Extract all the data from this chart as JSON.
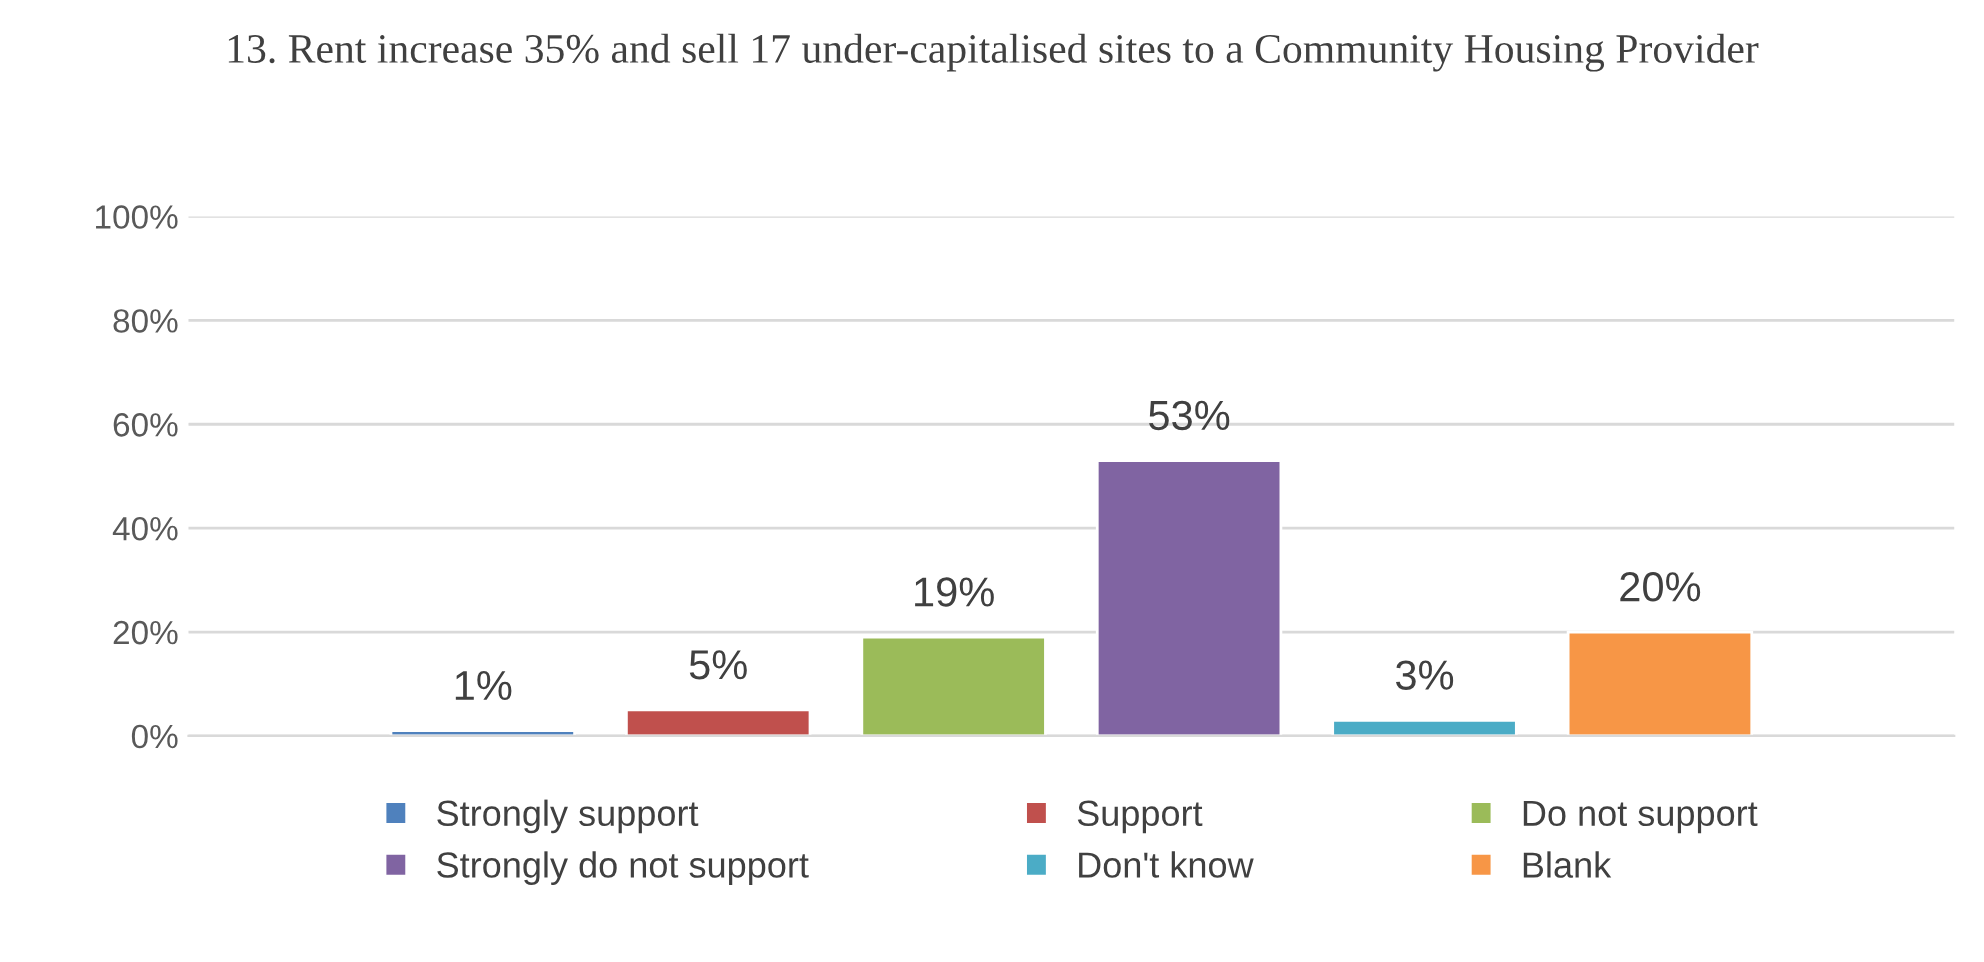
{
  "chart_data": {
    "type": "bar",
    "title": "13. Rent increase 35% and sell 17 under-capitalised sites to a Community Housing Provider",
    "categories": [
      null
    ],
    "series": [
      {
        "name": "Strongly support",
        "color": "#4f81bd",
        "values": [
          1
        ],
        "value_labels": [
          "1%"
        ]
      },
      {
        "name": "Support",
        "color": "#c0504d",
        "values": [
          5
        ],
        "value_labels": [
          "5%"
        ]
      },
      {
        "name": "Do not support",
        "color": "#9bbb59",
        "values": [
          19
        ],
        "value_labels": [
          "19%"
        ]
      },
      {
        "name": "Strongly do not support",
        "color": "#8064a2",
        "values": [
          53
        ],
        "value_labels": [
          "53%"
        ]
      },
      {
        "name": "Don't know",
        "color": "#4bacc6",
        "values": [
          3
        ],
        "value_labels": [
          "3%"
        ]
      },
      {
        "name": "Blank",
        "color": "#f79646",
        "values": [
          20
        ],
        "value_labels": [
          "20%"
        ]
      }
    ],
    "ylim": [
      0,
      100
    ],
    "yticks": [
      {
        "value": 0,
        "label": "0%"
      },
      {
        "value": 20,
        "label": "20%"
      },
      {
        "value": 40,
        "label": "40%"
      },
      {
        "value": 60,
        "label": "60%"
      },
      {
        "value": 80,
        "label": "80%"
      },
      {
        "value": 100,
        "label": "100%"
      }
    ],
    "grid": "y",
    "legend": "bottom"
  }
}
